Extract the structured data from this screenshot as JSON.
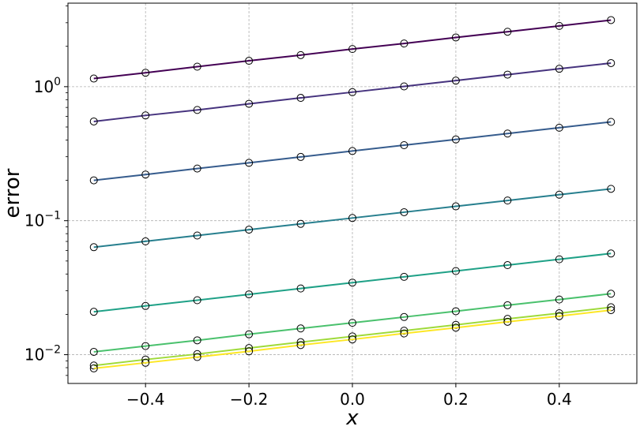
{
  "chart_data": {
    "type": "line",
    "title": "",
    "xlabel": "x",
    "ylabel": "error",
    "xlim": [
      -0.55,
      0.55
    ],
    "ylim": [
      0.0061,
      4.2
    ],
    "yscale": "log",
    "grid": true,
    "legend": "none",
    "marker": "open-circle",
    "x": [
      -0.5,
      -0.4,
      -0.3,
      -0.2,
      -0.1,
      0.0,
      0.1,
      0.2,
      0.3,
      0.4,
      0.5
    ],
    "xticks": [
      -0.4,
      -0.2,
      0.0,
      0.2,
      0.4
    ],
    "xtick_labels": [
      "−0.4",
      "−0.2",
      "0.0",
      "0.2",
      "0.4"
    ],
    "yticks": [
      {
        "value": 1,
        "base": "10",
        "exp": "0"
      },
      {
        "value": 0.1,
        "base": "10",
        "exp": "−1"
      },
      {
        "value": 0.01,
        "base": "10",
        "exp": "−2"
      }
    ],
    "series": [
      {
        "color": "#440154",
        "values": [
          1.15,
          1.27,
          1.41,
          1.56,
          1.72,
          1.91,
          2.1,
          2.33,
          2.57,
          2.84,
          3.14
        ]
      },
      {
        "color": "#46337e",
        "values": [
          0.55,
          0.61,
          0.67,
          0.745,
          0.825,
          0.91,
          1.005,
          1.11,
          1.23,
          1.36,
          1.5
        ]
      },
      {
        "color": "#365c8d",
        "values": [
          0.2,
          0.221,
          0.245,
          0.27,
          0.299,
          0.331,
          0.366,
          0.404,
          0.447,
          0.494,
          0.546
        ]
      },
      {
        "color": "#277f8e",
        "values": [
          0.0634,
          0.0701,
          0.0775,
          0.0857,
          0.0947,
          0.1047,
          0.1157,
          0.1279,
          0.1414,
          0.1563,
          0.1728
        ]
      },
      {
        "color": "#1fa187",
        "values": [
          0.0209,
          0.0231,
          0.0255,
          0.0282,
          0.0312,
          0.0345,
          0.0381,
          0.0421,
          0.0466,
          0.0515,
          0.0569
        ]
      },
      {
        "color": "#4ac16d",
        "values": [
          0.0105,
          0.0116,
          0.0128,
          0.0142,
          0.0157,
          0.0173,
          0.0191,
          0.0211,
          0.0234,
          0.0258,
          0.0285
        ]
      },
      {
        "color": "#9fda3a",
        "values": [
          0.0083,
          0.0092,
          0.0101,
          0.0112,
          0.0124,
          0.0137,
          0.0151,
          0.0167,
          0.0185,
          0.0204,
          0.0226
        ]
      },
      {
        "color": "#fde725",
        "values": [
          0.0079,
          0.0087,
          0.0096,
          0.0106,
          0.0118,
          0.013,
          0.0144,
          0.0159,
          0.0176,
          0.0194,
          0.0215
        ]
      }
    ]
  }
}
